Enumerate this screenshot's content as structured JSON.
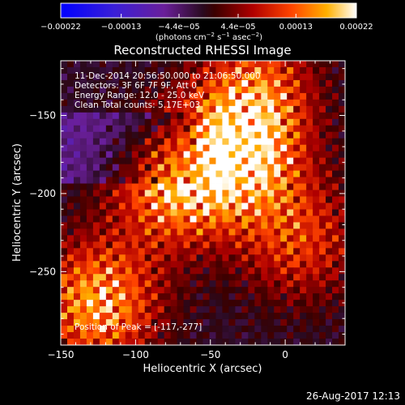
{
  "chart_data": {
    "type": "heatmap",
    "title": "Reconstructed RHESSI Image",
    "xlabel": "Heliocentric X (arcsec)",
    "ylabel": "Heliocentric Y (arcsec)",
    "xlim": [
      -150,
      40
    ],
    "ylim": [
      -297,
      -115
    ],
    "x_ticks": [
      {
        "value": -150,
        "label": "−150"
      },
      {
        "value": -100,
        "label": "−100"
      },
      {
        "value": -50,
        "label": "−50"
      },
      {
        "value": 0,
        "label": "0"
      }
    ],
    "y_ticks": [
      {
        "value": -150,
        "label": "−150"
      },
      {
        "value": -200,
        "label": "−200"
      },
      {
        "value": -250,
        "label": "−250"
      }
    ],
    "colorbar": {
      "range": [
        -0.00022,
        0.00022
      ],
      "ticks": [
        {
          "value": -0.00022,
          "label": "−0.00022"
        },
        {
          "value": -0.00013,
          "label": "−0.00013"
        },
        {
          "value": -4.4e-05,
          "label": "−4.4e−05"
        },
        {
          "value": 4.4e-05,
          "label": "4.4e−05"
        },
        {
          "value": 0.00013,
          "label": "0.00013"
        },
        {
          "value": 0.00022,
          "label": "0.00022"
        }
      ],
      "units_main": "(photons cm",
      "units_exp1": "−2",
      "units_mid": " s",
      "units_exp2": "−1",
      "units_end": " asec",
      "units_exp3": "−2",
      "units_close": ")"
    },
    "annotations": [
      "11-Dec-2014 20:56:50.000 to 21:06:50.000",
      "Detectors: 3F 6F 7F 9F, Att 0",
      "Energy Range: 12.0 - 25.0 keV",
      "Clean     Total counts: 5.17E+03"
    ],
    "peak_label": "Position of Peak = [-117,-277]",
    "peak": {
      "x": -117,
      "y": -277
    },
    "bright_sources": [
      {
        "x": -75,
        "y": -195,
        "peak_fraction": 0.9
      },
      {
        "x": -30,
        "y": -178,
        "peak_fraction": 1.0
      },
      {
        "x": -125,
        "y": -270,
        "peak_fraction": 1.0
      },
      {
        "x": -20,
        "y": -135,
        "peak_fraction": 0.75
      },
      {
        "x": 10,
        "y": -230,
        "peak_fraction": 0.6
      }
    ]
  },
  "timestamp": "26-Aug-2017 12:13"
}
